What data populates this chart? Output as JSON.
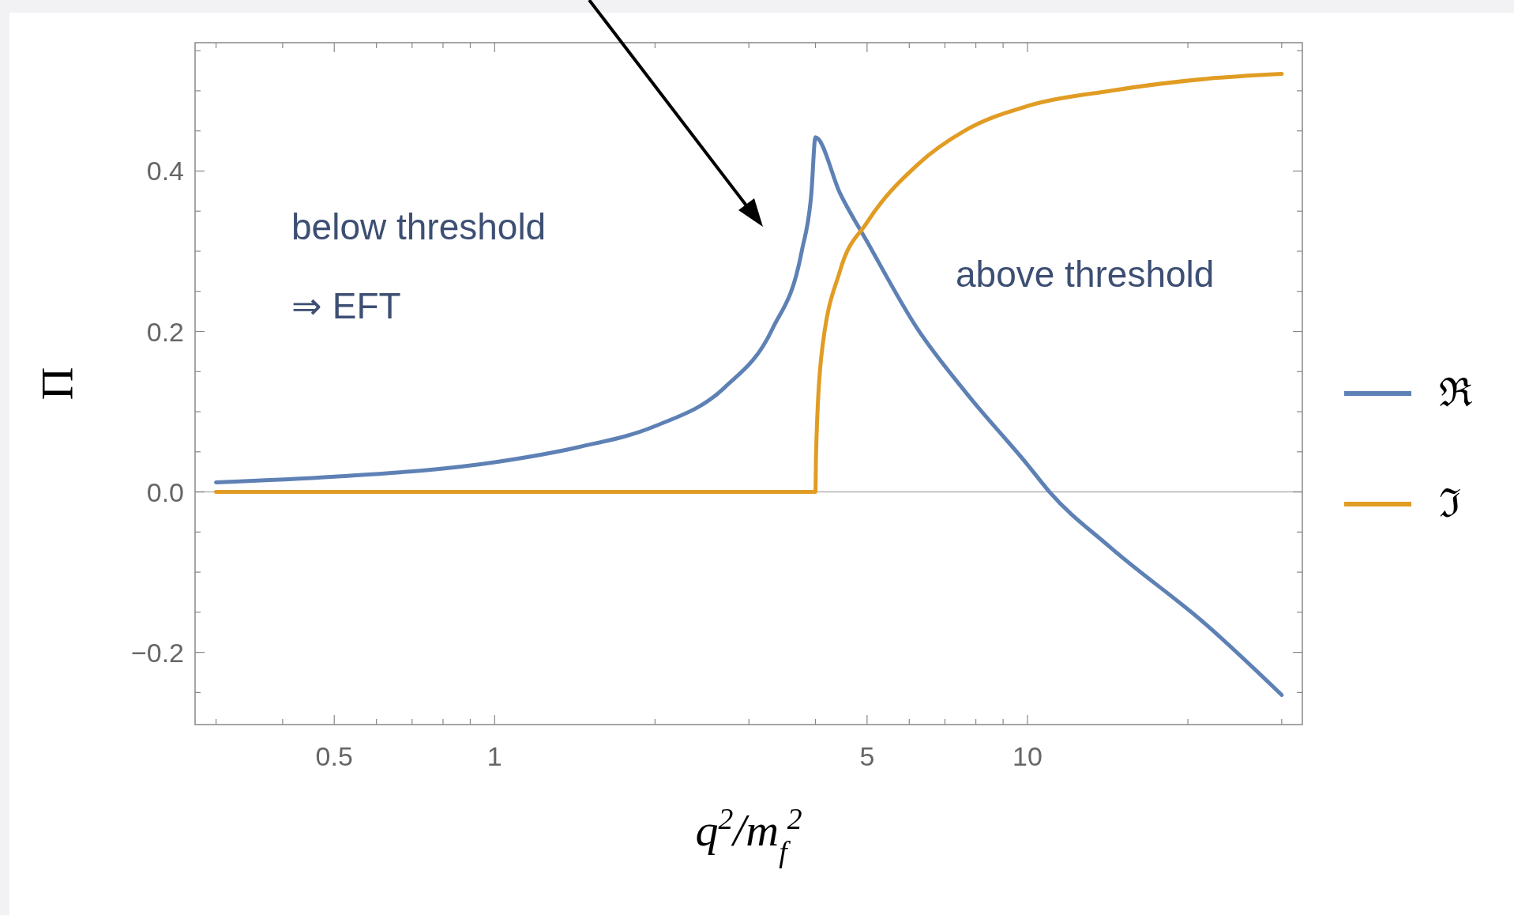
{
  "chart_data": {
    "type": "line",
    "xlabel": "q$^{2}$/m$_{f}$$^{2}$",
    "ylabel": "Π",
    "log": "x",
    "xlim": [
      0.274,
      32.8
    ],
    "ylim": [
      -0.29,
      0.56
    ],
    "xticks": [
      {
        "value": 0.3,
        "label": null
      },
      {
        "value": 0.4,
        "label": null
      },
      0.5,
      {
        "value": 0.6,
        "label": null
      },
      {
        "value": 0.7,
        "label": null
      },
      {
        "value": 0.8,
        "label": null
      },
      {
        "value": 0.9,
        "label": null
      },
      1,
      {
        "value": 2,
        "label": null
      },
      {
        "value": 3,
        "label": null
      },
      {
        "value": 4,
        "label": null
      },
      5,
      {
        "value": 6,
        "label": null
      },
      {
        "value": 7,
        "label": null
      },
      {
        "value": 8,
        "label": null
      },
      {
        "value": 9,
        "label": null
      },
      10,
      {
        "value": 20,
        "label": null
      },
      {
        "value": 30,
        "label": null
      }
    ],
    "yticks": [
      {
        "value": -0.25,
        "label": null
      },
      {
        "value": -0.2,
        "label": "−0.2"
      },
      {
        "value": -0.15,
        "label": null
      },
      {
        "value": -0.1,
        "label": null
      },
      {
        "value": -0.05,
        "label": null
      },
      {
        "value": 0,
        "label": "0.0"
      },
      {
        "value": 0.05,
        "label": null
      },
      {
        "value": 0.1,
        "label": null
      },
      {
        "value": 0.15,
        "label": null
      },
      {
        "value": 0.2,
        "label": "0.2"
      },
      {
        "value": 0.25,
        "label": null
      },
      {
        "value": 0.3,
        "label": null
      },
      {
        "value": 0.35,
        "label": null
      },
      {
        "value": 0.4,
        "label": "0.4"
      },
      {
        "value": 0.45,
        "label": null
      },
      {
        "value": 0.5,
        "label": null
      },
      {
        "value": 0.55,
        "label": null
      }
    ],
    "grid": false,
    "legend": "right",
    "line_style": "solid",
    "ref_lines": [
      {
        "axis": "y",
        "value": 0,
        "color": "#b3b3b3"
      }
    ],
    "annotations": [
      "below threshold",
      "⇒ EFT",
      "above threshold"
    ],
    "series": [
      {
        "name": "ℜ",
        "color": "#5e81b5",
        "x": [
          0.3,
          0.5,
          1,
          1.44,
          2,
          2.7,
          3.32,
          3.77,
          3.93,
          4,
          4.45,
          5,
          6.22,
          7.66,
          10,
          11,
          14.3,
          21.7,
          30
        ],
        "values": [
          0.012,
          0.019,
          0.037,
          0.056,
          0.082,
          0.13,
          0.203,
          0.3,
          0.372,
          0.442,
          0.372,
          0.312,
          0.203,
          0.124,
          0.034,
          0,
          -0.069,
          -0.166,
          -0.253
        ]
      },
      {
        "name": "ℑ",
        "color": "#e19c24",
        "x": [
          0.3,
          4,
          4.01,
          4.1,
          4.45,
          5,
          6.22,
          7.66,
          10,
          14.3,
          21.7,
          30
        ],
        "values": [
          0,
          0,
          0.046,
          0.167,
          0.276,
          0.336,
          0.408,
          0.451,
          0.481,
          0.5,
          0.515,
          0.521
        ]
      }
    ]
  }
}
